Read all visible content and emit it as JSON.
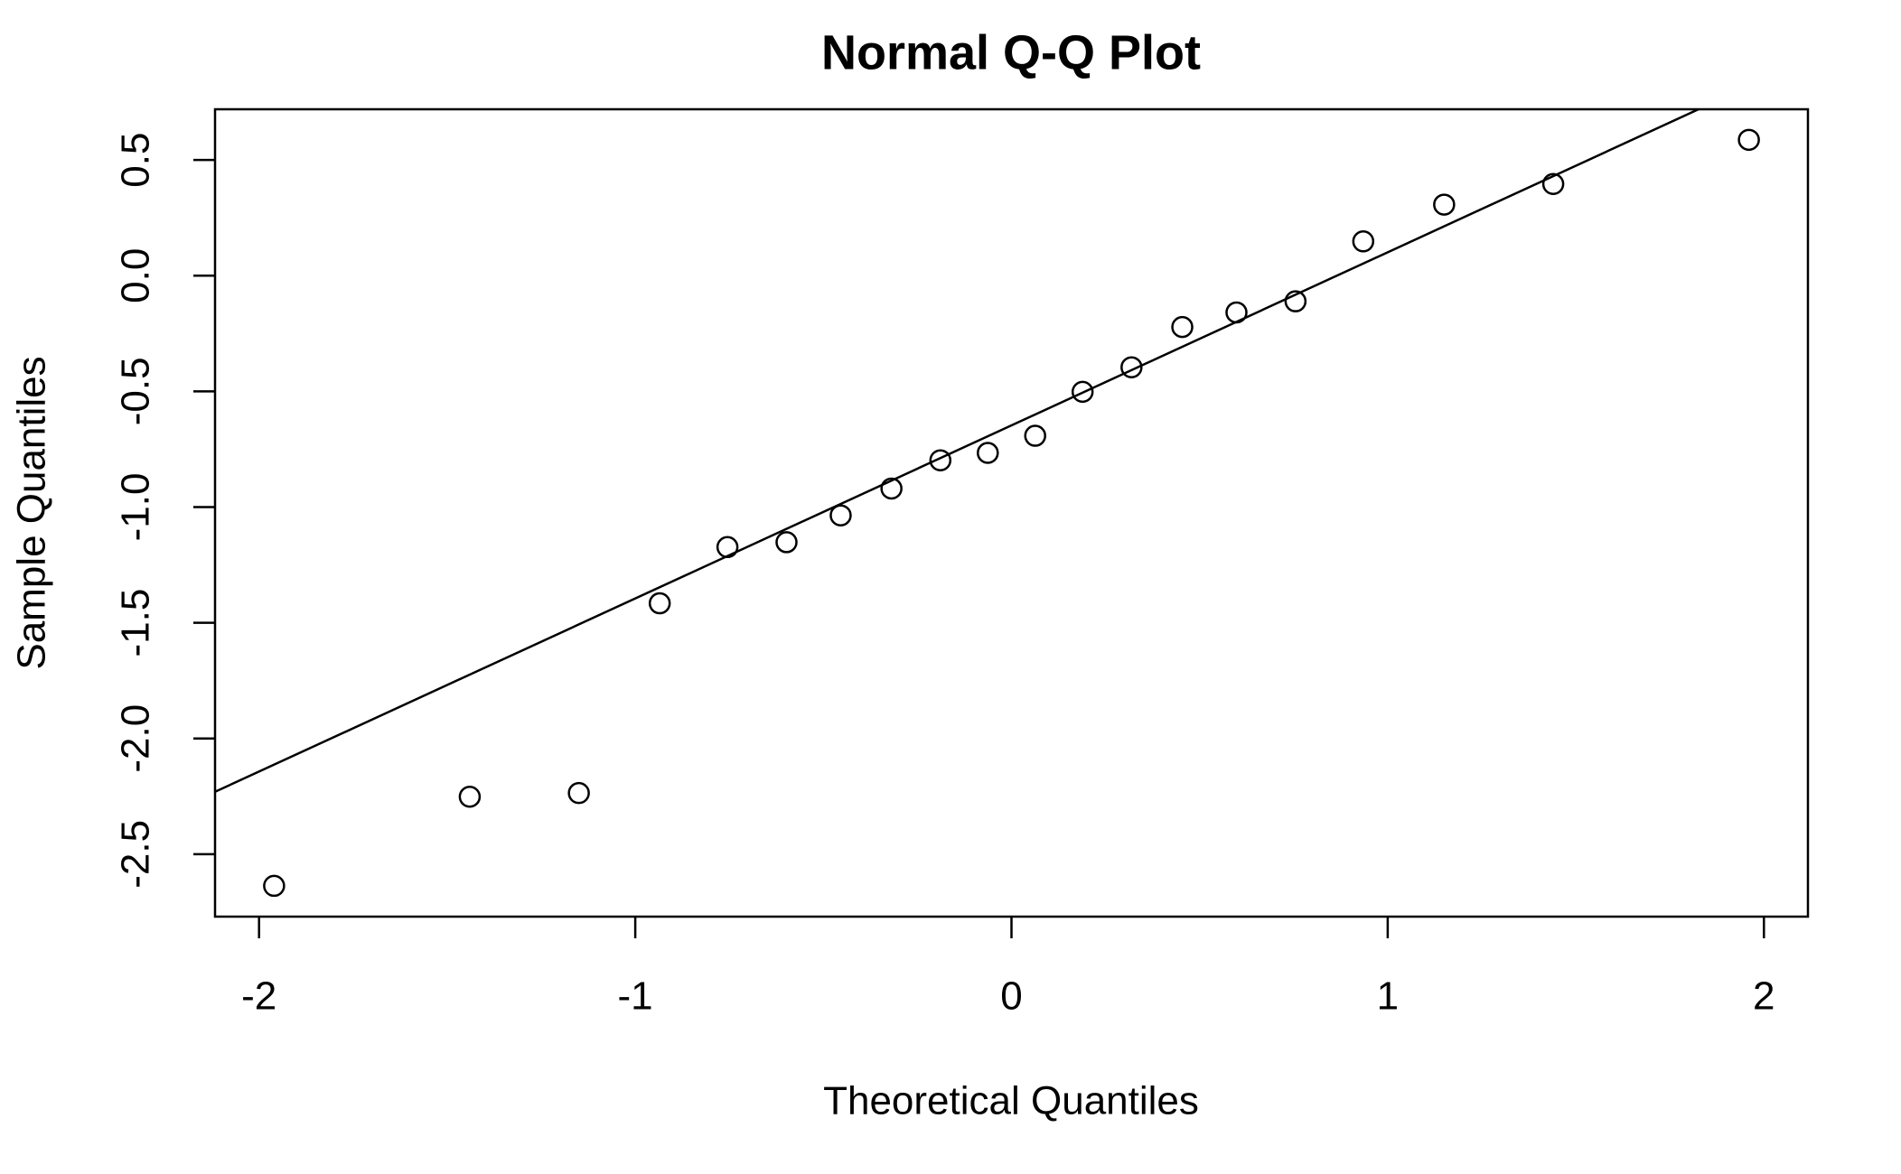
{
  "chart_data": {
    "type": "scatter",
    "title": "Normal Q-Q Plot",
    "x_label": "Theoretical Quantiles",
    "y_label": "Sample Quantiles",
    "x": [
      -1.96,
      -1.44,
      -1.15,
      -0.935,
      -0.755,
      -0.598,
      -0.454,
      -0.319,
      -0.189,
      -0.063,
      0.063,
      0.189,
      0.319,
      0.454,
      0.598,
      0.755,
      0.935,
      1.15,
      1.44,
      1.96
    ],
    "values": [
      -2.637,
      -2.252,
      -2.236,
      -1.416,
      -1.173,
      -1.152,
      -1.036,
      -0.92,
      -0.798,
      -0.766,
      -0.692,
      -0.502,
      -0.396,
      -0.222,
      -0.159,
      -0.111,
      0.148,
      0.307,
      0.396,
      0.587
    ],
    "reference_line": {
      "intercept": -0.647,
      "slope": 0.748
    },
    "color": "#000000",
    "xlim": [
      -2.117,
      2.117
    ],
    "ylim": [
      -2.77,
      0.719
    ],
    "xticks": [
      -2,
      -1,
      0,
      1,
      2
    ],
    "yticks": [
      {
        "value": -2.5,
        "label": "-2.5"
      },
      {
        "value": -2,
        "label": "-2.0"
      },
      {
        "value": -1.5,
        "label": "-1.5"
      },
      {
        "value": -1,
        "label": "-1.0"
      },
      -0.5,
      {
        "value": 0,
        "label": "0.0"
      },
      0.5
    ]
  }
}
